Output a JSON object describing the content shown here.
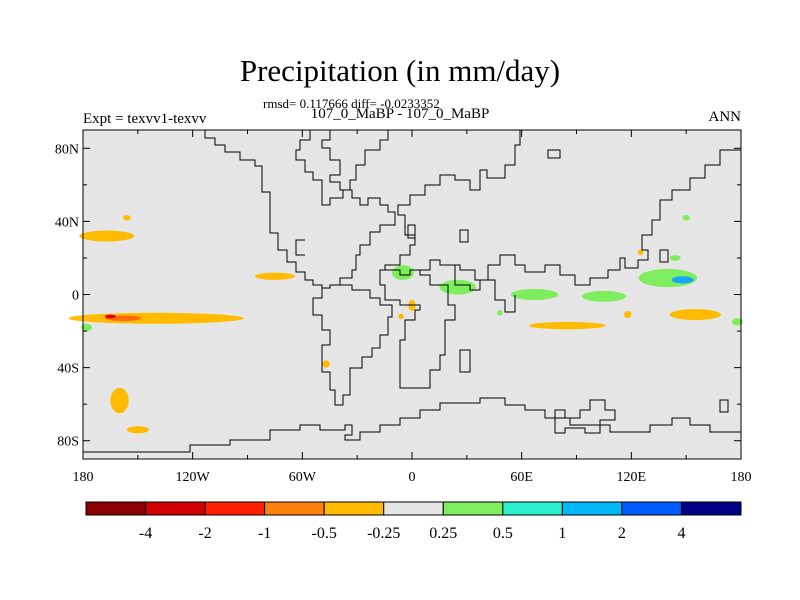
{
  "title": "Precipitation (in mm/day)",
  "stats_line": "rmsd= 0.117666 diff= -0.0233352",
  "subtitle": "107_0_MaBP - 107_0_MaBP",
  "left_label": "Expt = texvv1-texvv",
  "right_label": "ANN",
  "map": {
    "x_ticks": [
      {
        "lon": -180,
        "label": "180"
      },
      {
        "lon": -120,
        "label": "120W"
      },
      {
        "lon": -60,
        "label": "60W"
      },
      {
        "lon": 0,
        "label": "0"
      },
      {
        "lon": 60,
        "label": "60E"
      },
      {
        "lon": 120,
        "label": "120E"
      },
      {
        "lon": 180,
        "label": "180"
      }
    ],
    "y_ticks": [
      {
        "lat": 80,
        "label": "80N"
      },
      {
        "lat": 40,
        "label": "40N"
      },
      {
        "lat": 0,
        "label": "0"
      },
      {
        "lat": -40,
        "label": "40S"
      },
      {
        "lat": -80,
        "label": "80S"
      }
    ],
    "background_color": "#e6e6e6",
    "anomalies": [
      {
        "lon": -167,
        "lat": 32,
        "rlon": 15,
        "rlat": 3,
        "color": "#ffbb00"
      },
      {
        "lon": -156,
        "lat": 42,
        "rlon": 2,
        "rlat": 1.5,
        "color": "#ffbb00"
      },
      {
        "lon": -75,
        "lat": 10,
        "rlon": 11,
        "rlat": 2,
        "color": "#ffbb00"
      },
      {
        "lon": -140,
        "lat": -13,
        "rlon": 48,
        "rlat": 3,
        "color": "#ffbb00"
      },
      {
        "lon": -158,
        "lat": -13,
        "rlon": 10,
        "rlat": 1.5,
        "color": "#ff6a00"
      },
      {
        "lon": -165,
        "lat": -12,
        "rlon": 3,
        "rlat": 1,
        "color": "#d90000"
      },
      {
        "lon": -178,
        "lat": -18,
        "rlon": 3,
        "rlat": 2,
        "color": "#7fee5e"
      },
      {
        "lon": -160,
        "lat": -58,
        "rlon": 5,
        "rlat": 7,
        "color": "#ffbb00"
      },
      {
        "lon": -150,
        "lat": -74,
        "rlon": 6,
        "rlat": 2,
        "color": "#ffbb00"
      },
      {
        "lon": -47,
        "lat": -38,
        "rlon": 2,
        "rlat": 2,
        "color": "#ffbb00"
      },
      {
        "lon": 0,
        "lat": -6,
        "rlon": 2,
        "rlat": 3,
        "color": "#ffbb00"
      },
      {
        "lon": -6,
        "lat": -12,
        "rlon": 1.5,
        "rlat": 1.5,
        "color": "#ffbb00"
      },
      {
        "lon": 85,
        "lat": -17,
        "rlon": 21,
        "rlat": 2,
        "color": "#ffbb00"
      },
      {
        "lon": 155,
        "lat": -11,
        "rlon": 14,
        "rlat": 3,
        "color": "#ffbb00"
      },
      {
        "lon": 118,
        "lat": -11,
        "rlon": 2,
        "rlat": 2,
        "color": "#ffbb00"
      },
      {
        "lon": 125,
        "lat": 23,
        "rlon": 1.5,
        "rlat": 1.5,
        "color": "#ffbb00"
      },
      {
        "lon": -5,
        "lat": 12,
        "rlon": 6,
        "rlat": 4,
        "color": "#7fee5e"
      },
      {
        "lon": 25,
        "lat": 4,
        "rlon": 10,
        "rlat": 4,
        "color": "#7fee5e"
      },
      {
        "lon": 67,
        "lat": 0,
        "rlon": 13,
        "rlat": 3,
        "color": "#7fee5e"
      },
      {
        "lon": 105,
        "lat": -1,
        "rlon": 12,
        "rlat": 3,
        "color": "#7fee5e"
      },
      {
        "lon": 140,
        "lat": 9,
        "rlon": 16,
        "rlat": 5,
        "color": "#7fee5e"
      },
      {
        "lon": 148,
        "lat": 8,
        "rlon": 6,
        "rlat": 2,
        "color": "#1aa3ff"
      },
      {
        "lon": 144,
        "lat": 20,
        "rlon": 3,
        "rlat": 1.5,
        "color": "#7fee5e"
      },
      {
        "lon": 150,
        "lat": 42,
        "rlon": 2,
        "rlat": 1.5,
        "color": "#7fee5e"
      },
      {
        "lon": 178,
        "lat": -15,
        "rlon": 3,
        "rlat": 2,
        "color": "#7fee5e"
      },
      {
        "lon": 48,
        "lat": -10,
        "rlon": 1.5,
        "rlat": 1.5,
        "color": "#7fee5e"
      }
    ]
  },
  "colorbar": {
    "colors": [
      "#8b0000",
      "#d00000",
      "#ff2000",
      "#ff7f0e",
      "#ffbb00",
      "#e6e6e6",
      "#7fee5e",
      "#2bf0d0",
      "#00b8f8",
      "#005cff",
      "#000087"
    ],
    "labels": [
      "-4",
      "-2",
      "-1",
      "-0.5",
      "-0.25",
      "0.25",
      "0.5",
      "1",
      "2",
      "4"
    ]
  }
}
